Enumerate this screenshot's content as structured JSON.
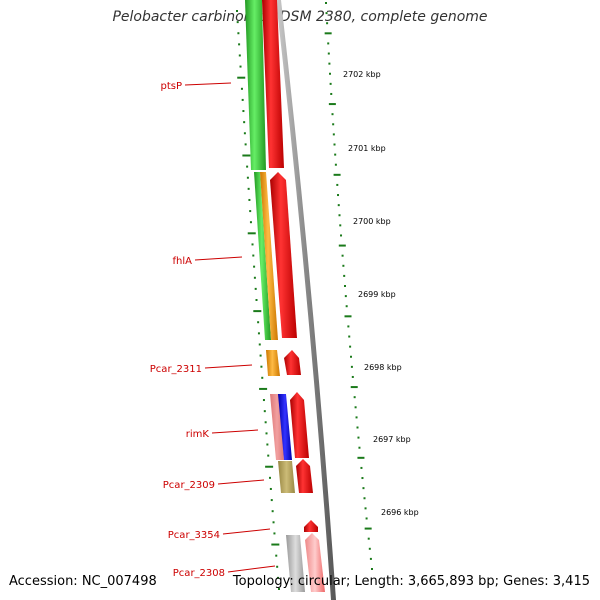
{
  "title": "Pelobacter carbinolicus DSM 2380, complete genome",
  "accession": "Accession: NC_007498",
  "summary": "Topology: circular; Length: 3,665,893 bp; Genes: 3,415",
  "colors": {
    "label": "#cc0000",
    "tick": "#1a7a1a",
    "backbone": "#8c8c8c",
    "green": "#33cc33",
    "orange": "#ff9900",
    "red": "#ee0000",
    "pink": "#ee8888",
    "blue": "#0000ee",
    "olive": "#bbaa66",
    "gray": "#bbbbbb"
  },
  "gene_labels": [
    "ptsP",
    "fhlA",
    "Pcar_2311",
    "rimK",
    "Pcar_2309",
    "Pcar_3354",
    "Pcar_2308"
  ],
  "scale_labels": [
    "2702 kbp",
    "2701 kbp",
    "2700 kbp",
    "2699 kbp",
    "2698 kbp",
    "2697 kbp",
    "2696 kbp"
  ]
}
